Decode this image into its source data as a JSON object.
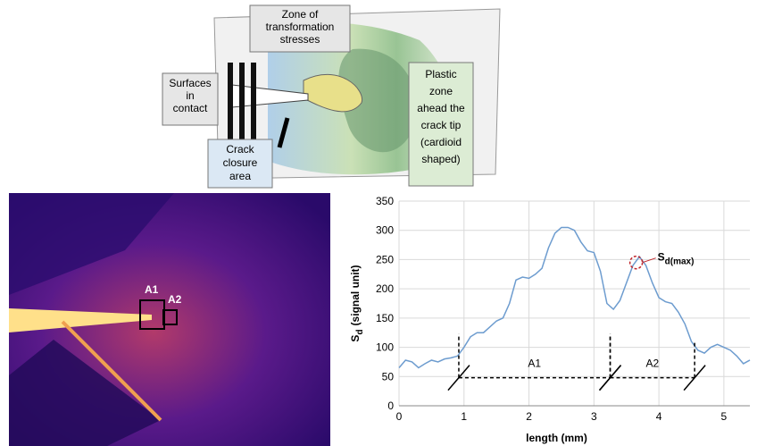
{
  "diagram": {
    "zone_label": [
      "Zone of",
      "transformation",
      "stresses"
    ],
    "surfaces_label": [
      "Surfaces",
      "in",
      "contact"
    ],
    "closure_label": [
      "Crack",
      "closure",
      "area"
    ],
    "plastic_label": [
      "Plastic",
      "zone",
      "ahead the",
      "crack tip",
      "(cardioid",
      "shaped)"
    ]
  },
  "image": {
    "labels": [
      "A1",
      "A2"
    ]
  },
  "chart_data": {
    "type": "line",
    "y_label": "S",
    "y_label_sub": "d",
    "y_label_unit": "(signal unit)",
    "x_label": "length (mm)",
    "xlim": [
      0,
      5.4
    ],
    "xticks": [
      0,
      1,
      2,
      3,
      4,
      5
    ],
    "ylim": [
      0,
      350
    ],
    "yticks": [
      0,
      50,
      100,
      150,
      200,
      250,
      300,
      350
    ],
    "grid": true,
    "series": [
      {
        "color": "#6d9ccf",
        "x": [
          0,
          0.1,
          0.2,
          0.3,
          0.4,
          0.5,
          0.6,
          0.7,
          0.8,
          0.9,
          1.0,
          1.1,
          1.2,
          1.3,
          1.4,
          1.5,
          1.6,
          1.7,
          1.8,
          1.9,
          2.0,
          2.1,
          2.2,
          2.3,
          2.4,
          2.5,
          2.6,
          2.7,
          2.8,
          2.9,
          3.0,
          3.1,
          3.2,
          3.3,
          3.4,
          3.5,
          3.6,
          3.7,
          3.8,
          3.9,
          4.0,
          4.1,
          4.2,
          4.3,
          4.4,
          4.5,
          4.6,
          4.7,
          4.8,
          4.9,
          5.0,
          5.1,
          5.2,
          5.3,
          5.4
        ],
        "values": [
          65,
          78,
          75,
          65,
          72,
          78,
          75,
          80,
          82,
          85,
          100,
          118,
          125,
          125,
          135,
          145,
          150,
          175,
          215,
          220,
          218,
          225,
          235,
          270,
          295,
          305,
          305,
          300,
          280,
          265,
          262,
          230,
          175,
          165,
          180,
          210,
          240,
          255,
          240,
          210,
          185,
          178,
          175,
          160,
          140,
          110,
          95,
          90,
          100,
          105,
          100,
          95,
          85,
          72,
          78
        ]
      }
    ],
    "regions": [
      {
        "label": "A1",
        "x": [
          0.92,
          3.25
        ]
      },
      {
        "label": "A2",
        "x": [
          3.25,
          4.55
        ]
      }
    ],
    "region_level": 48,
    "peak": {
      "x": 3.65,
      "y": 245,
      "label": "S",
      "label_sub": "d(max)"
    }
  }
}
